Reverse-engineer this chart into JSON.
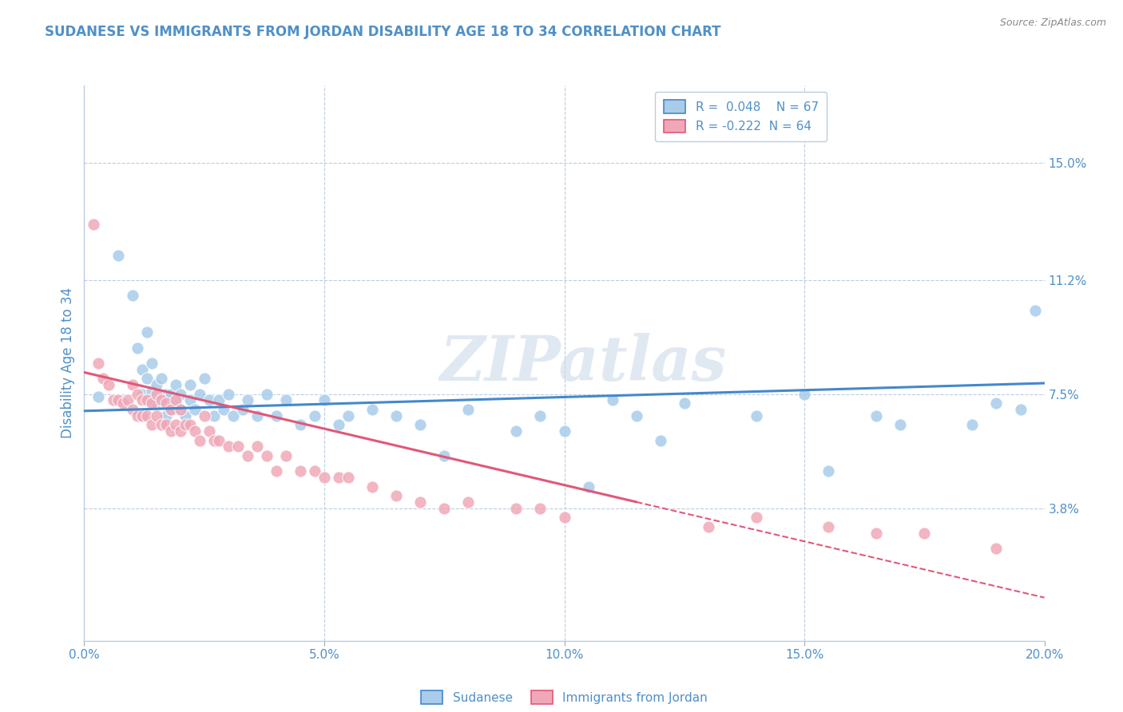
{
  "title": "SUDANESE VS IMMIGRANTS FROM JORDAN DISABILITY AGE 18 TO 34 CORRELATION CHART",
  "source": "Source: ZipAtlas.com",
  "ylabel": "Disability Age 18 to 34",
  "xlim": [
    0.0,
    0.2
  ],
  "ylim": [
    -0.005,
    0.175
  ],
  "xticks": [
    0.0,
    0.05,
    0.1,
    0.15,
    0.2
  ],
  "xtick_labels": [
    "0.0%",
    "5.0%",
    "10.0%",
    "15.0%",
    "20.0%"
  ],
  "yticks_right": [
    0.038,
    0.075,
    0.112,
    0.15
  ],
  "ytick_labels_right": [
    "3.8%",
    "7.5%",
    "11.2%",
    "15.0%"
  ],
  "blue_R": 0.048,
  "blue_N": 67,
  "pink_R": -0.222,
  "pink_N": 64,
  "blue_color": "#A8CCEA",
  "pink_color": "#F0A8B8",
  "blue_line_color": "#4488CC",
  "pink_line_color": "#E05878",
  "legend_label_blue": "Sudanese",
  "legend_label_pink": "Immigrants from Jordan",
  "watermark": "ZIPatlas",
  "title_color": "#5090C8",
  "axis_color": "#5090C8",
  "blue_x": [
    0.003,
    0.007,
    0.01,
    0.011,
    0.012,
    0.012,
    0.013,
    0.013,
    0.014,
    0.014,
    0.015,
    0.015,
    0.016,
    0.016,
    0.017,
    0.017,
    0.018,
    0.018,
    0.019,
    0.019,
    0.02,
    0.02,
    0.021,
    0.022,
    0.022,
    0.023,
    0.024,
    0.025,
    0.026,
    0.027,
    0.028,
    0.029,
    0.03,
    0.031,
    0.033,
    0.034,
    0.036,
    0.038,
    0.04,
    0.042,
    0.045,
    0.048,
    0.05,
    0.053,
    0.055,
    0.06,
    0.065,
    0.07,
    0.075,
    0.08,
    0.09,
    0.095,
    0.1,
    0.105,
    0.11,
    0.115,
    0.12,
    0.125,
    0.14,
    0.15,
    0.155,
    0.165,
    0.17,
    0.185,
    0.19,
    0.195,
    0.198
  ],
  "blue_y": [
    0.074,
    0.12,
    0.107,
    0.09,
    0.083,
    0.075,
    0.08,
    0.095,
    0.076,
    0.085,
    0.078,
    0.072,
    0.08,
    0.073,
    0.068,
    0.075,
    0.07,
    0.075,
    0.078,
    0.072,
    0.07,
    0.075,
    0.068,
    0.073,
    0.078,
    0.07,
    0.075,
    0.08,
    0.073,
    0.068,
    0.073,
    0.07,
    0.075,
    0.068,
    0.07,
    0.073,
    0.068,
    0.075,
    0.068,
    0.073,
    0.065,
    0.068,
    0.073,
    0.065,
    0.068,
    0.07,
    0.068,
    0.065,
    0.055,
    0.07,
    0.063,
    0.068,
    0.063,
    0.045,
    0.073,
    0.068,
    0.06,
    0.072,
    0.068,
    0.075,
    0.05,
    0.068,
    0.065,
    0.065,
    0.072,
    0.07,
    0.102
  ],
  "pink_x": [
    0.002,
    0.003,
    0.004,
    0.005,
    0.006,
    0.007,
    0.008,
    0.009,
    0.01,
    0.01,
    0.011,
    0.011,
    0.012,
    0.012,
    0.013,
    0.013,
    0.014,
    0.014,
    0.015,
    0.015,
    0.016,
    0.016,
    0.017,
    0.017,
    0.018,
    0.018,
    0.019,
    0.019,
    0.02,
    0.02,
    0.021,
    0.022,
    0.023,
    0.024,
    0.025,
    0.026,
    0.027,
    0.028,
    0.03,
    0.032,
    0.034,
    0.036,
    0.038,
    0.04,
    0.042,
    0.045,
    0.048,
    0.05,
    0.053,
    0.055,
    0.06,
    0.065,
    0.07,
    0.075,
    0.08,
    0.09,
    0.095,
    0.1,
    0.13,
    0.14,
    0.155,
    0.165,
    0.175,
    0.19
  ],
  "pink_y": [
    0.13,
    0.085,
    0.08,
    0.078,
    0.073,
    0.073,
    0.072,
    0.073,
    0.07,
    0.078,
    0.075,
    0.068,
    0.073,
    0.068,
    0.073,
    0.068,
    0.072,
    0.065,
    0.075,
    0.068,
    0.073,
    0.065,
    0.072,
    0.065,
    0.07,
    0.063,
    0.073,
    0.065,
    0.07,
    0.063,
    0.065,
    0.065,
    0.063,
    0.06,
    0.068,
    0.063,
    0.06,
    0.06,
    0.058,
    0.058,
    0.055,
    0.058,
    0.055,
    0.05,
    0.055,
    0.05,
    0.05,
    0.048,
    0.048,
    0.048,
    0.045,
    0.042,
    0.04,
    0.038,
    0.04,
    0.038,
    0.038,
    0.035,
    0.032,
    0.035,
    0.032,
    0.03,
    0.03,
    0.025
  ],
  "blue_trend_x0": 0.0,
  "blue_trend_x1": 0.2,
  "blue_trend_y0": 0.0695,
  "blue_trend_y1": 0.0785,
  "pink_trend_solid_x0": 0.0,
  "pink_trend_solid_x1": 0.115,
  "pink_trend_y0": 0.082,
  "pink_trend_y1": 0.04,
  "pink_trend_dash_x0": 0.115,
  "pink_trend_dash_x1": 0.2,
  "pink_trend_dash_y0": 0.04,
  "pink_trend_dash_y1": 0.009
}
